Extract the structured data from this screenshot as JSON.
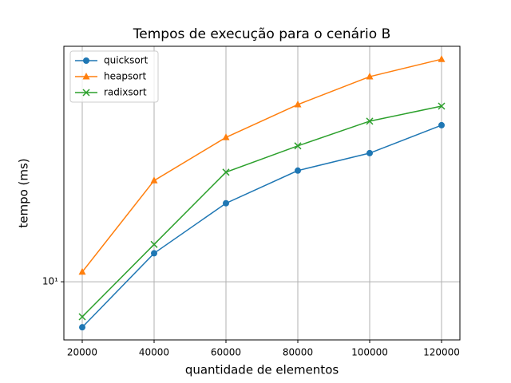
{
  "chart_data": {
    "type": "line",
    "title": "Tempos de execução para o cenário B",
    "xlabel": "quantidade de elementos",
    "ylabel": "tempo (ms)",
    "x": [
      20000,
      40000,
      60000,
      80000,
      100000,
      120000
    ],
    "series": [
      {
        "name": "quicksort",
        "color": "#1f77b4",
        "marker": "circle",
        "values": [
          7.0,
          12.5,
          18.5,
          23.9,
          27.4,
          34.1
        ]
      },
      {
        "name": "heapsort",
        "color": "#ff7f0e",
        "marker": "triangle",
        "values": [
          10.8,
          22.1,
          31.0,
          40.1,
          49.9,
          57.2
        ]
      },
      {
        "name": "radixsort",
        "color": "#2ca02c",
        "marker": "x",
        "values": [
          7.6,
          13.4,
          23.6,
          29.0,
          35.2,
          39.6
        ]
      }
    ],
    "xlim": [
      14889,
      125111
    ],
    "xticks": [
      20000,
      40000,
      60000,
      80000,
      100000,
      120000
    ],
    "ylim": [
      6.34,
      63.3
    ],
    "yticks": [
      {
        "value": 10,
        "label": "10¹"
      }
    ],
    "yscale": "log",
    "grid": true,
    "legend": "upper-left"
  }
}
